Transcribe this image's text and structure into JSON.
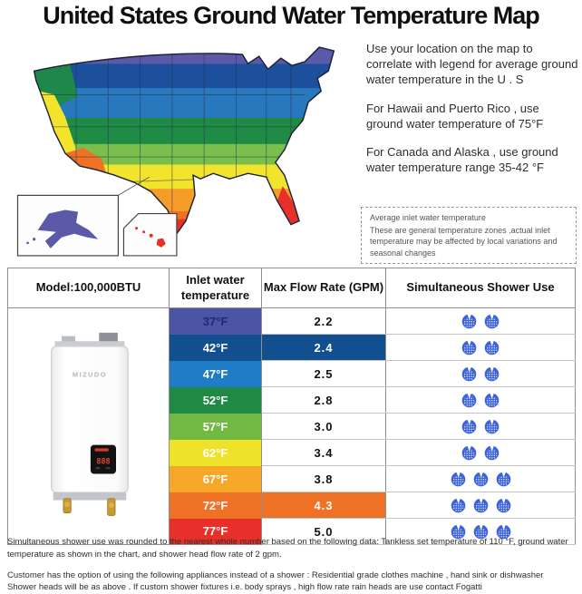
{
  "title": "United States Ground Water Temperature Map",
  "info": {
    "paragraphs": [
      "Use your location on the map to correlate with legend for average ground water temperature in the U . S",
      "For Hawaii and Puerto Rico , use ground water temperature of 75°F",
      "For Canada and Alaska , use ground water temperature range 35-42 °F"
    ],
    "note": {
      "title": "Average inlet water temperature",
      "body": "These are general temperature zones .actual inlet temperature may be affected by local variations and seasonal changes"
    }
  },
  "map": {
    "band_colors": [
      "#5A5AA8",
      "#1C4F9C",
      "#2878BE",
      "#1F8A44",
      "#7ABF4C",
      "#F2E32C",
      "#F59D28",
      "#EE7125",
      "#E8302A"
    ],
    "outline_color": "#1b2033",
    "state_line_color": "#27344e"
  },
  "heater": {
    "brand": "MIZUDO",
    "display_value": "888"
  },
  "table": {
    "headers": {
      "model": "Model:100,000BTU",
      "inlet": "Inlet water temperature",
      "flow": "Max Flow Rate (GPM)",
      "shower": "Simultaneous Shower Use"
    },
    "rows": [
      {
        "temp": "37°F",
        "flow": "2.2",
        "showers": 2,
        "temp_bg": "#4C55A5",
        "temp_fg": "#1B2B6E",
        "flow_bg": "#FFFFFF",
        "flow_fg": "#111111"
      },
      {
        "temp": "42°F",
        "flow": "2.4",
        "showers": 2,
        "temp_bg": "#124F8E",
        "temp_fg": "#FFFFFF",
        "flow_bg": "#124F8E",
        "flow_fg": "#FFFFFF"
      },
      {
        "temp": "47°F",
        "flow": "2.5",
        "showers": 2,
        "temp_bg": "#1E7DC6",
        "temp_fg": "#FFFFFF",
        "flow_bg": "#FFFFFF",
        "flow_fg": "#111111"
      },
      {
        "temp": "52°F",
        "flow": "2.8",
        "showers": 2,
        "temp_bg": "#1F8A44",
        "temp_fg": "#FFFFFF",
        "flow_bg": "#FFFFFF",
        "flow_fg": "#111111"
      },
      {
        "temp": "57°F",
        "flow": "3.0",
        "showers": 2,
        "temp_bg": "#72B944",
        "temp_fg": "#FFFFFF",
        "flow_bg": "#FFFFFF",
        "flow_fg": "#111111"
      },
      {
        "temp": "62°F",
        "flow": "3.4",
        "showers": 2,
        "temp_bg": "#EFE32A",
        "temp_fg": "#FFFFFF",
        "flow_bg": "#FFFFFF",
        "flow_fg": "#111111"
      },
      {
        "temp": "67°F",
        "flow": "3.8",
        "showers": 3,
        "temp_bg": "#F5A728",
        "temp_fg": "#FFFFFF",
        "flow_bg": "#FFFFFF",
        "flow_fg": "#111111"
      },
      {
        "temp": "72°F",
        "flow": "4.3",
        "showers": 3,
        "temp_bg": "#EE7125",
        "temp_fg": "#FFFFFF",
        "flow_bg": "#EE7125",
        "flow_fg": "#FFFFFF"
      },
      {
        "temp": "77°F",
        "flow": "5.0",
        "showers": 3,
        "temp_bg": "#E8302A",
        "temp_fg": "#FFFFFF",
        "flow_bg": "#FFFFFF",
        "flow_fg": "#111111"
      }
    ]
  },
  "shower_icon_color": "#3D63DB",
  "footnotes": [
    "Simultaneous shower use was rounded to the nearest whole number based on the following data: Tankless set temperature of 110 °F, ground water temperature as shown in the chart, and shower head flow rate of 2 gpm.",
    "Customer has the option of using the following appliances instead of a shower : Residential grade clothes machine , hand sink or dishwasher",
    "Shower heads will be as above . If custom shower fixtures i.e. body sprays , high flow rate rain heads are use contact Fogatti"
  ]
}
